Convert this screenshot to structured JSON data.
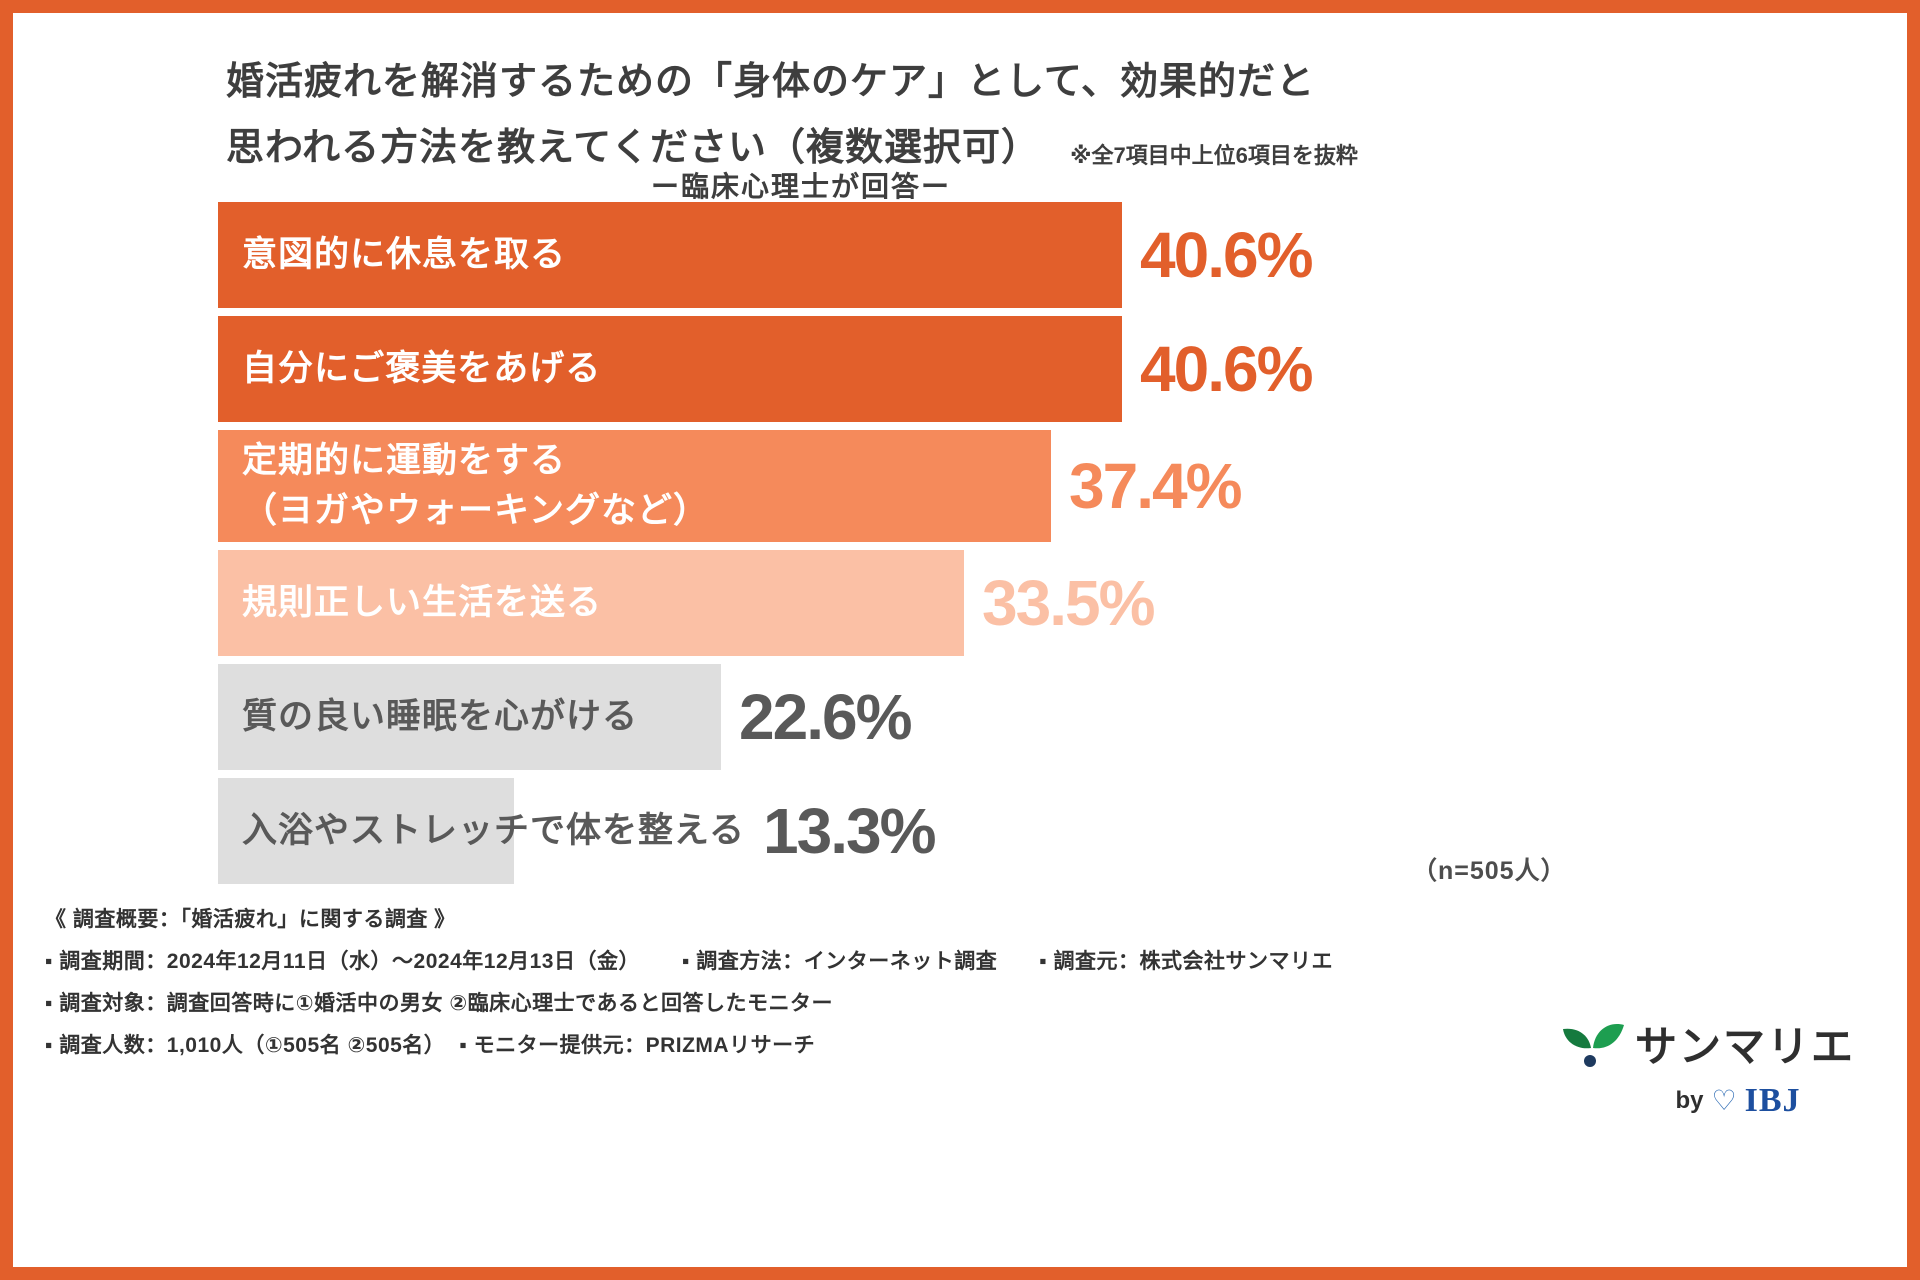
{
  "header": {
    "title_line1": "婚活疲れを解消するための「身体のケア」として、効果的だと",
    "title_line2": "思われる方法を教えてください（複数選択可）",
    "note": "※全7項目中上位6項目を抜粋",
    "subtitle": "ー臨床心理士が回答ー"
  },
  "chart_data": {
    "type": "bar",
    "orientation": "horizontal",
    "title": "婚活疲れを解消するための「身体のケア」として、効果的だと思われる方法を教えてください（複数選択可）",
    "subtitle": "ー臨床心理士が回答ー",
    "note": "※全7項目中上位6項目を抜粋",
    "categories": [
      "意図的に休息を取る",
      "自分にご褒美をあげる",
      "定期的に運動をする\n（ヨガやウォーキングなど）",
      "規則正しい生活を送る",
      "質の良い睡眠を心がける",
      "入浴やストレッチで体を整える"
    ],
    "values": [
      40.6,
      40.6,
      37.4,
      33.5,
      22.6,
      13.3
    ],
    "value_labels": [
      "40.6%",
      "40.6%",
      "37.4%",
      "33.5%",
      "22.6%",
      "13.3%"
    ],
    "bar_colors": [
      "#e25f2b",
      "#e25f2b",
      "#f58a5b",
      "#fbc0a5",
      "#dedede",
      "#dedede"
    ],
    "bar_text_colors": [
      "#ffffff",
      "#ffffff",
      "#ffffff",
      "#ffffff",
      "#595959",
      "#595959"
    ],
    "value_colors": [
      "#e25f2b",
      "#e25f2b",
      "#f58a5b",
      "#fbc0a5",
      "#595959",
      "#595959"
    ],
    "xlim": [
      0,
      40.6
    ],
    "sample_note": "（n=505人）"
  },
  "footer": {
    "survey_title": "《 調査概要：「婚活疲れ」に関する調査 》",
    "line1_items": [
      "▪ 調査期間：2024年12月11日（水）～2024年12月13日（金）",
      "▪ 調査方法：インターネット調査",
      "▪ 調査元：株式会社サンマリエ"
    ],
    "line2": "▪ 調査対象：調査回答時に①婚活中の男女 ②臨床心理士であると回答したモニター",
    "line3_items": [
      "▪ 調査人数：1,010人（①505名 ②505名）",
      "▪ モニター提供元：PRIZMAリサーチ"
    ]
  },
  "logo": {
    "brand": "サンマリエ",
    "by": "by",
    "ibj": "IBJ"
  },
  "colors": {
    "frame": "#e25f2b",
    "accent_dark": "#e25f2b",
    "accent_mid": "#f58a5b",
    "accent_light": "#fbc0a5",
    "neutral_bar": "#dedede",
    "neutral_text": "#595959"
  }
}
